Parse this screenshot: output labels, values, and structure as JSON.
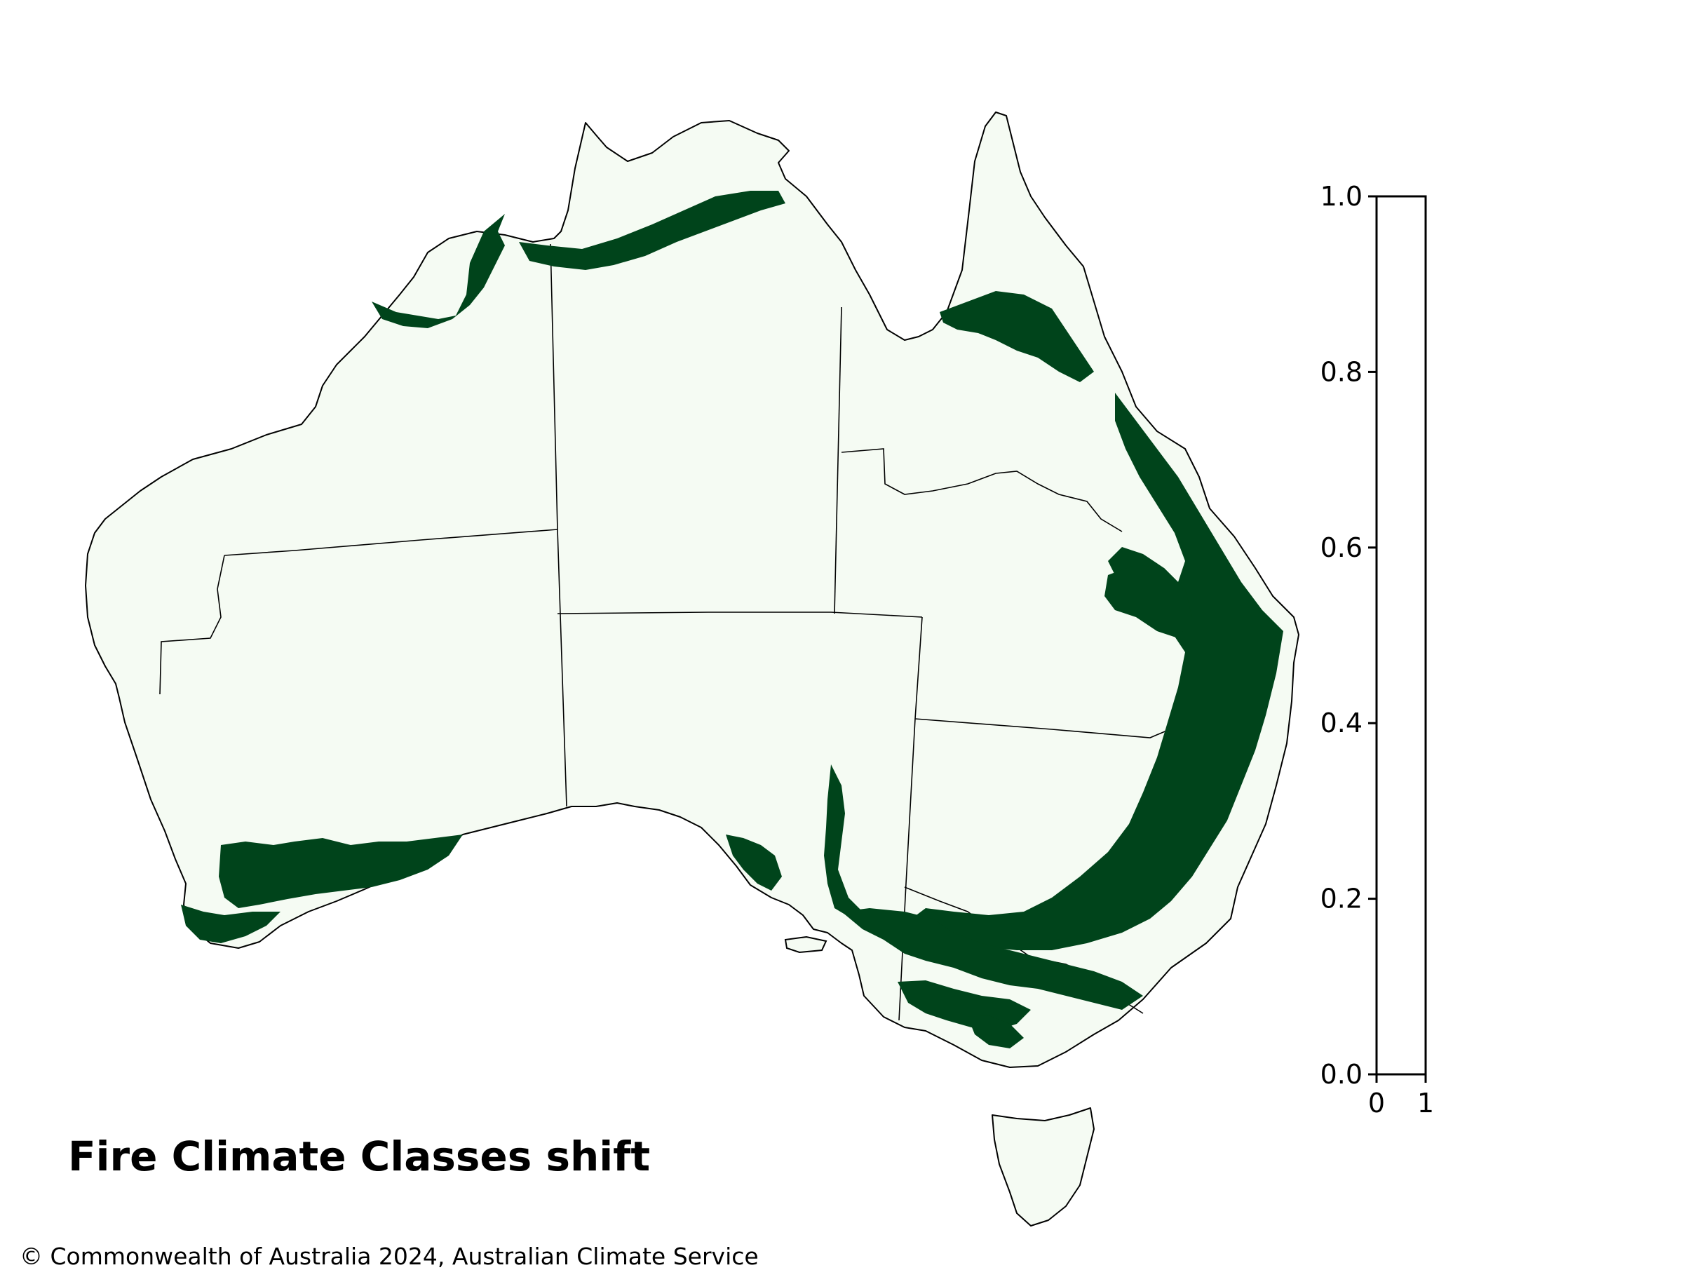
{
  "map": {
    "title": "Fire Climate Classes shift",
    "copyright": "© Commonwealth of Australia 2024, Australian Climate Service",
    "land_color": "#f5fbf3",
    "shift_color": "#00441b",
    "outline_color": "#000000"
  },
  "colorbar": {
    "y_ticks": [
      "0.0",
      "0.2",
      "0.4",
      "0.6",
      "0.8",
      "1.0"
    ],
    "y_values": [
      0.0,
      0.2,
      0.4,
      0.6,
      0.8,
      1.0
    ],
    "x_ticks": [
      "0",
      "1"
    ],
    "x_values": [
      0,
      1
    ],
    "ylim": [
      0,
      1
    ],
    "xlim": [
      0,
      1
    ]
  }
}
